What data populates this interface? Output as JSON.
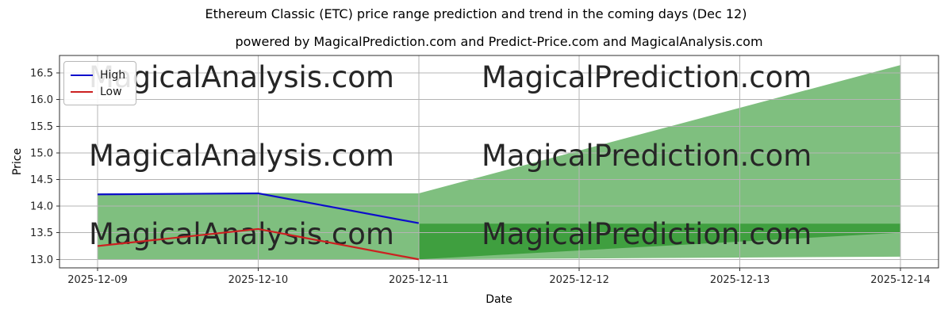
{
  "chart_data": {
    "type": "line",
    "title": "Ethereum Classic (ETC) price range prediction and trend in the coming days (Dec 12)",
    "subtitle": "powered by MagicalPrediction.com and Predict-Price.com and MagicalAnalysis.com",
    "categories": [
      "2025-12-09",
      "2025-12-10",
      "2025-12-11",
      "2025-12-12",
      "2025-12-13",
      "2025-12-14"
    ],
    "series": [
      {
        "name": "High",
        "color": "#0d0dcc",
        "x": [
          "2025-12-09",
          "2025-12-10",
          "2025-12-11"
        ],
        "values": [
          14.22,
          14.24,
          13.68
        ]
      },
      {
        "name": "Low",
        "color": "#cc2020",
        "x": [
          "2025-12-09",
          "2025-12-10",
          "2025-12-11"
        ],
        "values": [
          13.25,
          13.57,
          13.0
        ]
      }
    ],
    "bands": [
      {
        "name": "historical-range-band",
        "color": "#008000",
        "opacity": 0.5,
        "x": [
          "2025-12-09",
          "2025-12-11"
        ],
        "top": [
          14.24,
          14.24
        ],
        "bottom": [
          13.0,
          13.0
        ]
      },
      {
        "name": "forecast-range-fan",
        "color": "#008000",
        "opacity": 0.5,
        "x": [
          "2025-12-11",
          "2025-12-14"
        ],
        "top": [
          14.24,
          16.65
        ],
        "bottom": [
          13.0,
          13.05
        ]
      },
      {
        "name": "forecast-target-band",
        "color": "#008000",
        "opacity": 0.5,
        "x": [
          "2025-12-11",
          "2025-12-14"
        ],
        "top": [
          13.67,
          13.67
        ],
        "bottom": [
          13.0,
          13.5
        ]
      }
    ],
    "xlabel": "Date",
    "ylabel": "Price",
    "ylim": [
      12.84,
      16.83
    ],
    "yticks": [
      13.0,
      13.5,
      14.0,
      14.5,
      15.0,
      15.5,
      16.0,
      16.5
    ],
    "grid": true,
    "legend_position": "upper left"
  },
  "watermarks": [
    "MagicalAnalysis.com",
    "MagicalPrediction.com"
  ],
  "colors": {
    "grid": "#b4b4b4",
    "spine": "#2f2f2f",
    "tick_label": "#262626",
    "watermark": "rgba(128,128,128,0.17)"
  }
}
